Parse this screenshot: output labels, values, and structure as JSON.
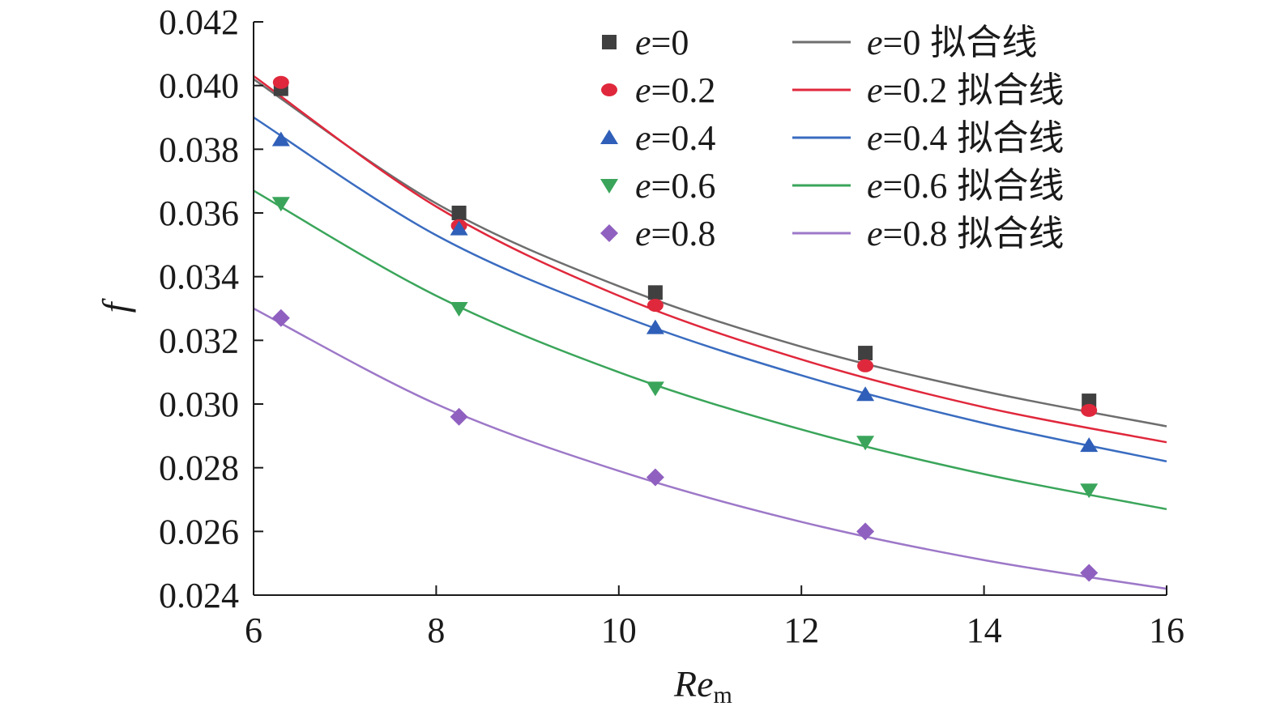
{
  "chart_data": {
    "type": "scatter",
    "xlabel": "Re",
    "xlabel_subscript": "m",
    "ylabel": "f",
    "xlim": [
      6,
      16
    ],
    "ylim": [
      0.024,
      0.042
    ],
    "x_ticks": [
      "6",
      "8",
      "10",
      "12",
      "14",
      "16"
    ],
    "y_ticks": [
      "0.024",
      "0.026",
      "0.028",
      "0.030",
      "0.032",
      "0.034",
      "0.036",
      "0.038",
      "0.040",
      "0.042"
    ],
    "grid": false,
    "legend_position": "top-right",
    "x": [
      6.3,
      8.25,
      10.4,
      12.7,
      15.15
    ],
    "series": [
      {
        "name": "e=0",
        "var": "e",
        "value": "=0",
        "marker": "square",
        "color": "#404040",
        "values": [
          0.0399,
          0.036,
          0.0335,
          0.0316,
          0.0301
        ]
      },
      {
        "name": "e=0.2",
        "var": "e",
        "value": "=0.2",
        "marker": "circle",
        "color": "#e0283c",
        "values": [
          0.0401,
          0.0356,
          0.0331,
          0.0312,
          0.0298
        ]
      },
      {
        "name": "e=0.4",
        "var": "e",
        "value": "=0.4",
        "marker": "triangle-up",
        "color": "#2f5fb8",
        "values": [
          0.0383,
          0.0355,
          0.0324,
          0.0303,
          0.0287
        ]
      },
      {
        "name": "e=0.6",
        "var": "e",
        "value": "=0.6",
        "marker": "triangle-down",
        "color": "#3aa55a",
        "values": [
          0.0363,
          0.033,
          0.0305,
          0.0288,
          0.0273
        ]
      },
      {
        "name": "e=0.8",
        "var": "e",
        "value": "=0.8",
        "marker": "diamond",
        "color": "#9060c0",
        "values": [
          0.0327,
          0.0296,
          0.0277,
          0.026,
          0.0247
        ]
      }
    ],
    "fit_lines": [
      {
        "name": "e=0 拟合线",
        "var": "e",
        "value": "=0",
        "suffix": "拟合线",
        "color": "#6e6e6e",
        "x": [
          6,
          8,
          10,
          12,
          14,
          16
        ],
        "values": [
          0.0402,
          0.0363,
          0.0337,
          0.0318,
          0.0304,
          0.0293
        ]
      },
      {
        "name": "e=0.2 拟合线",
        "var": "e",
        "value": "=0.2",
        "suffix": "拟合线",
        "color": "#e0283c",
        "x": [
          6,
          8,
          10,
          12,
          14,
          16
        ],
        "values": [
          0.0403,
          0.0362,
          0.0334,
          0.0314,
          0.0299,
          0.0288
        ]
      },
      {
        "name": "e=0.4 拟合线",
        "var": "e",
        "value": "=0.4",
        "suffix": "拟合线",
        "color": "#3a6cc0",
        "x": [
          6,
          8,
          10,
          12,
          14,
          16
        ],
        "values": [
          0.039,
          0.0353,
          0.0328,
          0.0309,
          0.0294,
          0.0282
        ]
      },
      {
        "name": "e=0.6 拟合线",
        "var": "e",
        "value": "=0.6",
        "suffix": "拟合线",
        "color": "#3aa55a",
        "x": [
          6,
          8,
          10,
          12,
          14,
          16
        ],
        "values": [
          0.0367,
          0.0334,
          0.031,
          0.0292,
          0.0278,
          0.0267
        ]
      },
      {
        "name": "e=0.8 拟合线",
        "var": "e",
        "value": "=0.8",
        "suffix": "拟合线",
        "color": "#9d78c8",
        "x": [
          6,
          8,
          10,
          12,
          14,
          16
        ],
        "values": [
          0.033,
          0.03,
          0.0279,
          0.0263,
          0.0251,
          0.0242
        ]
      }
    ]
  }
}
